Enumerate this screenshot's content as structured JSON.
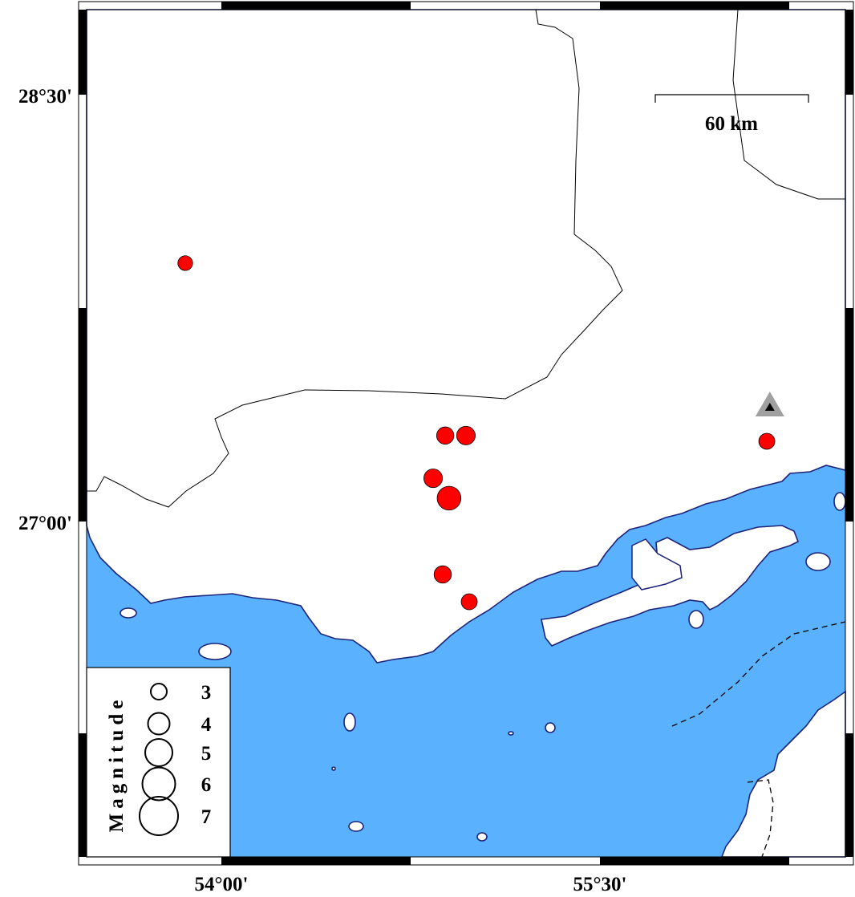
{
  "map": {
    "colors": {
      "sea": "#5ab1fd",
      "land": "#ffffff",
      "coastline": "#1c237a",
      "event_fill": "#ff0000",
      "station_outer": "#a0a0a0",
      "station_inner": "#000000"
    },
    "lat_labels": [
      {
        "value": 28.5,
        "text": "28°30'"
      },
      {
        "value": 27.0,
        "text": "27°00'"
      }
    ],
    "lon_labels": [
      {
        "value": 54.0,
        "text": "54°00'"
      },
      {
        "value": 55.5,
        "text": "55°30'"
      }
    ],
    "scale_bar": {
      "label": "60 km"
    },
    "legend": {
      "title": "Magnitude",
      "entries": [
        {
          "mag": 3,
          "label": "3"
        },
        {
          "mag": 4,
          "label": "4"
        },
        {
          "mag": 5,
          "label": "5"
        },
        {
          "mag": 6,
          "label": "6"
        },
        {
          "mag": 7,
          "label": "7"
        }
      ]
    },
    "events": [
      {
        "lon": 53.857,
        "lat": 27.908,
        "mag": 2.8
      },
      {
        "lon": 54.887,
        "lat": 27.302,
        "mag": 3.2
      },
      {
        "lon": 54.969,
        "lat": 27.302,
        "mag": 3.4
      },
      {
        "lon": 54.839,
        "lat": 27.152,
        "mag": 3.4
      },
      {
        "lon": 54.902,
        "lat": 27.082,
        "mag": 4.2
      },
      {
        "lon": 54.877,
        "lat": 26.814,
        "mag": 3.2
      },
      {
        "lon": 54.982,
        "lat": 26.718,
        "mag": 3.0
      },
      {
        "lon": 56.161,
        "lat": 27.282,
        "mag": 3.0
      }
    ],
    "stations": [
      {
        "lon": 56.173,
        "lat": 27.403
      }
    ]
  }
}
